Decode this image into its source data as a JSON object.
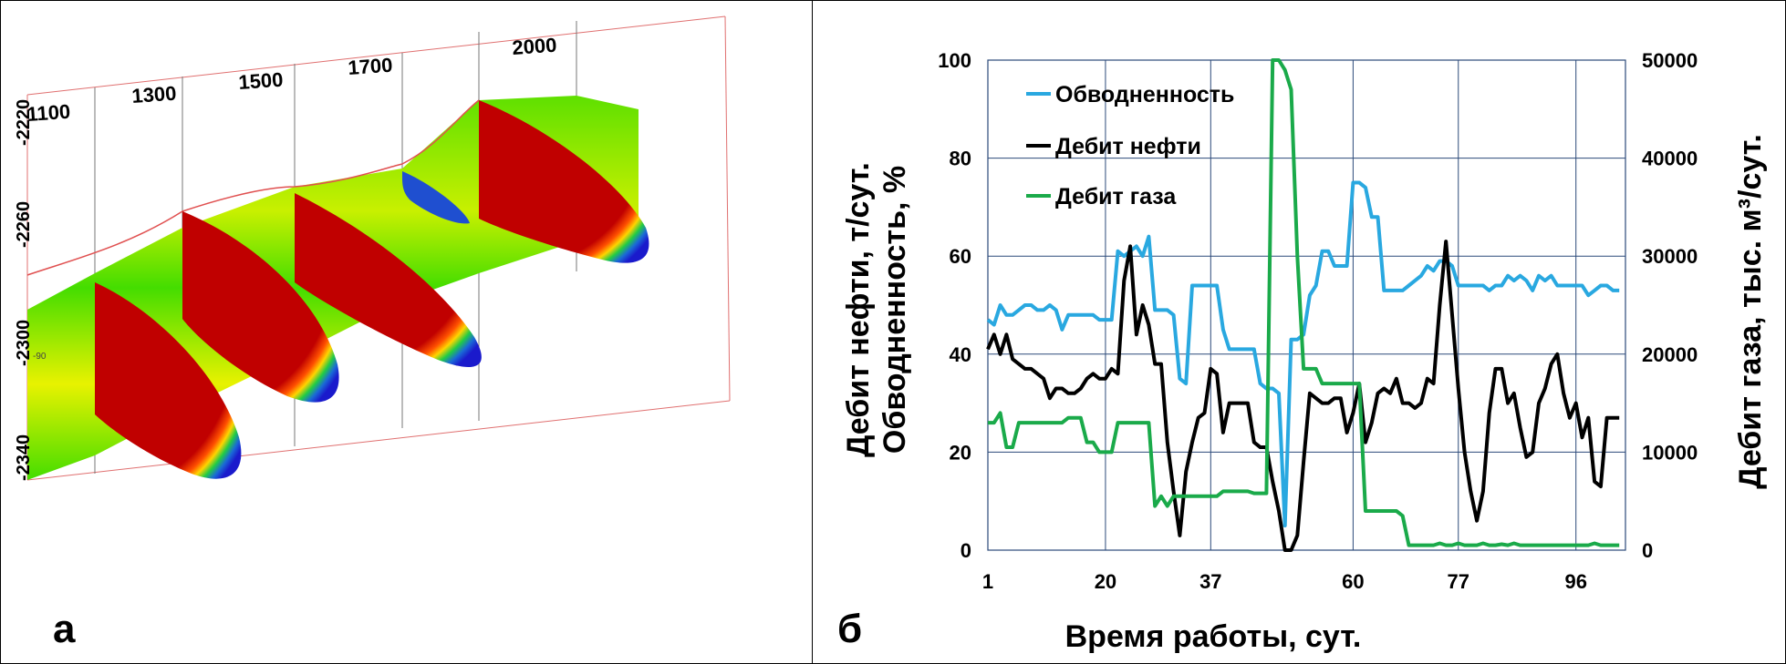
{
  "panel_a": {
    "label": "а",
    "section_labels": [
      "1100",
      "1300",
      "1500",
      "1700",
      "2000"
    ],
    "depth_ticks": [
      "-2220",
      "-2260",
      "-2300",
      "-2340"
    ],
    "small_label": "-90"
  },
  "panel_b": {
    "label": "б"
  },
  "colors": {
    "water_cut": "#29a8e0",
    "oil_rate": "#000000",
    "gas_rate": "#1aaa4a",
    "grid": "#2c4a7a",
    "saturation_red": "#c00000",
    "reservoir_green": "#33dd00",
    "boundary_red": "#e05050"
  },
  "chart_data": {
    "type": "line",
    "xlabel": "Время работы, сут.",
    "ylabel_left": "Дебит нефти, т/сут.\nОбводненность, %",
    "ylabel_left_lines": [
      "Дебит нефти, т/сут.",
      "Обводненность, %"
    ],
    "ylabel_right": "Дебит газа, тыс. м³/сут.",
    "x_ticks": [
      "1",
      "20",
      "37",
      "60",
      "77",
      "96"
    ],
    "x_range": [
      1,
      104
    ],
    "ylim_left": [
      0,
      100
    ],
    "y_ticks_left": [
      "0",
      "20",
      "40",
      "60",
      "80",
      "100"
    ],
    "ylim_right": [
      0,
      50000
    ],
    "y_ticks_right": [
      "0",
      "10000",
      "20000",
      "30000",
      "40000",
      "50000"
    ],
    "grid": true,
    "legend_position": "top-left",
    "x": [
      1,
      2,
      3,
      4,
      5,
      6,
      7,
      8,
      9,
      10,
      11,
      12,
      13,
      14,
      15,
      16,
      17,
      18,
      19,
      20,
      21,
      22,
      23,
      24,
      25,
      26,
      27,
      28,
      29,
      30,
      31,
      32,
      33,
      34,
      35,
      36,
      37,
      38,
      39,
      40,
      41,
      42,
      43,
      44,
      45,
      46,
      47,
      48,
      49,
      50,
      51,
      52,
      53,
      54,
      55,
      56,
      57,
      58,
      59,
      60,
      61,
      62,
      63,
      64,
      65,
      66,
      67,
      68,
      69,
      70,
      71,
      72,
      73,
      74,
      75,
      76,
      77,
      78,
      79,
      80,
      81,
      82,
      83,
      84,
      85,
      86,
      87,
      88,
      89,
      90,
      91,
      92,
      93,
      94,
      95,
      96,
      97,
      98,
      99,
      100,
      101,
      102,
      103
    ],
    "series": [
      {
        "name": "Обводненность",
        "axis": "left",
        "values": [
          47,
          46,
          50,
          48,
          48,
          49,
          50,
          50,
          49,
          49,
          50,
          49,
          45,
          48,
          48,
          48,
          48,
          48,
          47,
          47,
          47,
          61,
          60,
          61,
          62,
          60,
          64,
          49,
          49,
          49,
          48,
          35,
          34,
          54,
          54,
          54,
          54,
          54,
          45,
          41,
          41,
          41,
          41,
          41,
          34,
          33,
          33,
          32,
          5,
          43,
          43,
          44,
          52,
          54,
          61,
          61,
          58,
          58,
          58,
          75,
          75,
          74,
          68,
          68,
          53,
          53,
          53,
          53,
          54,
          55,
          56,
          58,
          57,
          59,
          59,
          58,
          54,
          54,
          54,
          54,
          54,
          53,
          54,
          54,
          56,
          55,
          56,
          55,
          53,
          56,
          55,
          56,
          54,
          54,
          54,
          54,
          54,
          52,
          53,
          54,
          54,
          53,
          53
        ]
      },
      {
        "name": "Дебит нефти",
        "axis": "left",
        "values": [
          41,
          44,
          40,
          44,
          39,
          38,
          37,
          37,
          36,
          35,
          31,
          33,
          33,
          32,
          32,
          33,
          35,
          36,
          35,
          35,
          37,
          36,
          55,
          62,
          44,
          50,
          46,
          38,
          38,
          22,
          12,
          3,
          16,
          22,
          27,
          28,
          37,
          36,
          24,
          30,
          30,
          30,
          30,
          22,
          21,
          21,
          14,
          8,
          0,
          0,
          3,
          18,
          32,
          31,
          30,
          30,
          31,
          31,
          24,
          28,
          34,
          22,
          26,
          32,
          33,
          32,
          35,
          30,
          30,
          29,
          30,
          35,
          34,
          50,
          63,
          48,
          33,
          20,
          12,
          6,
          12,
          28,
          37,
          37,
          30,
          32,
          25,
          19,
          20,
          30,
          33,
          38,
          40,
          32,
          27,
          30,
          23,
          27,
          14,
          13,
          27,
          27,
          27
        ]
      },
      {
        "name": "Дебит газа",
        "axis": "right",
        "values": [
          13000,
          13000,
          14000,
          10500,
          10500,
          13000,
          13000,
          13000,
          13000,
          13000,
          13000,
          13000,
          13000,
          13500,
          13500,
          13500,
          11000,
          11000,
          10000,
          10000,
          10000,
          13000,
          13000,
          13000,
          13000,
          13000,
          13000,
          4500,
          5500,
          4500,
          5500,
          5500,
          5500,
          5500,
          5500,
          5500,
          5500,
          5500,
          6000,
          6000,
          6000,
          6000,
          6000,
          5800,
          5800,
          5800,
          50000,
          50000,
          49000,
          47000,
          30000,
          18500,
          18500,
          18500,
          17000,
          17000,
          17000,
          17000,
          17000,
          17000,
          17000,
          4000,
          4000,
          4000,
          4000,
          4000,
          4000,
          3500,
          500,
          500,
          500,
          500,
          500,
          700,
          500,
          500,
          700,
          500,
          500,
          500,
          700,
          500,
          500,
          600,
          500,
          700,
          500,
          500,
          500,
          500,
          500,
          500,
          500,
          500,
          500,
          500,
          500,
          500,
          700,
          500,
          500,
          500,
          500
        ]
      }
    ]
  }
}
